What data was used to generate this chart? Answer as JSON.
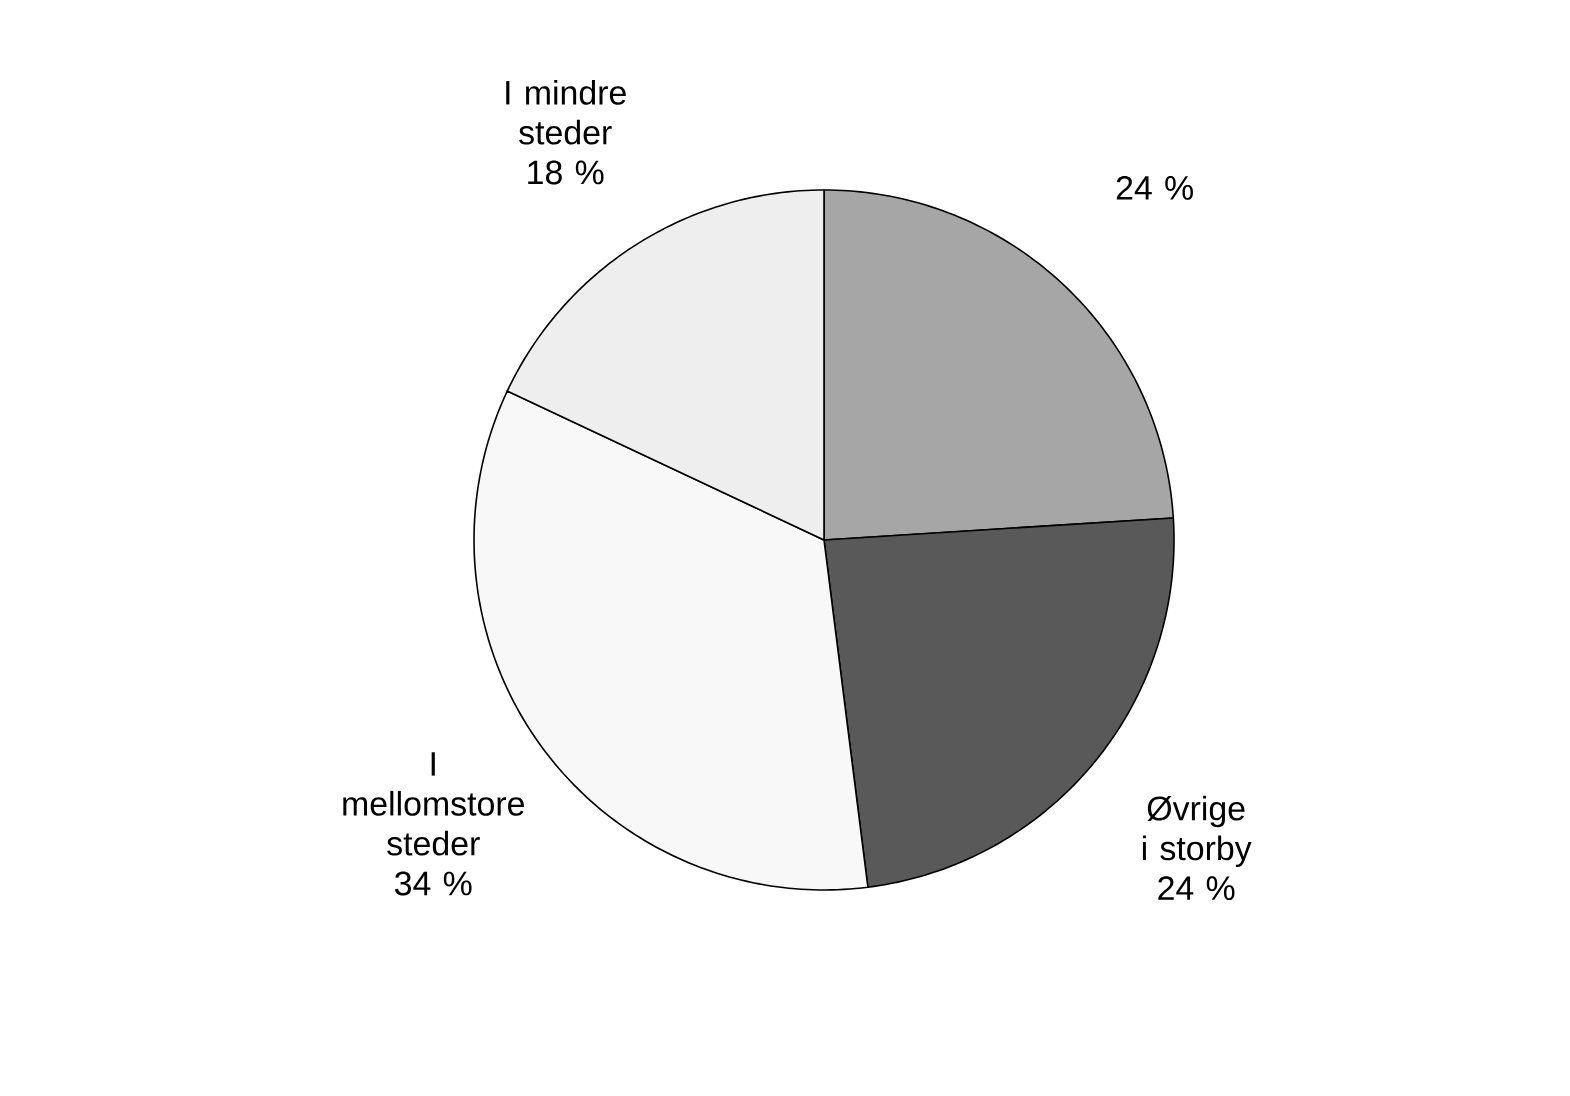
{
  "chart_data": {
    "type": "pie",
    "categories": [
      null,
      "Øvrige i storby",
      "I mellomstore steder",
      "I mindre steder"
    ],
    "values": [
      24,
      24,
      34,
      18
    ],
    "value_labels": [
      "24 %",
      "24 %",
      "34 %",
      "18 %"
    ],
    "colors": [
      "#a6a6a6",
      "#595959",
      "#f8f8f8",
      "#eeeeee"
    ]
  }
}
